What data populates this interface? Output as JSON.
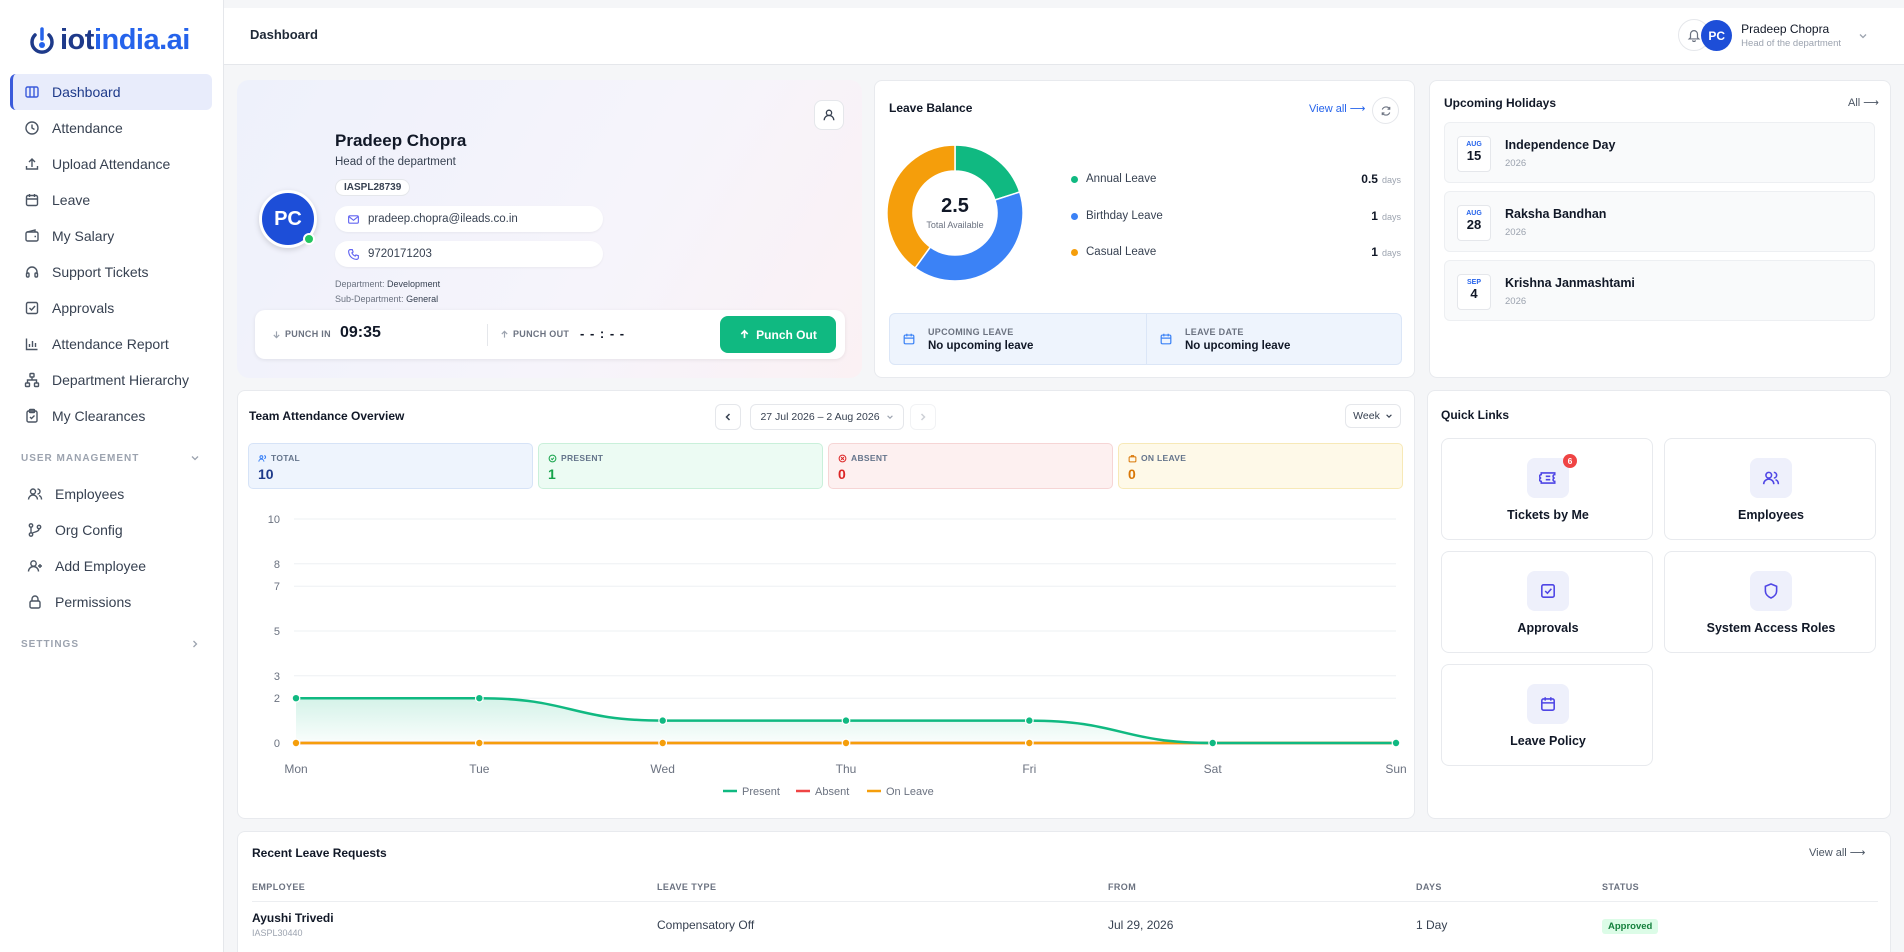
{
  "brand": {
    "name_a": "iot",
    "name_b": "india.ai"
  },
  "sidebar": {
    "items": [
      {
        "label": "Dashboard",
        "icon": "dashboard-icon",
        "active": true
      },
      {
        "label": "Attendance",
        "icon": "clock-icon"
      },
      {
        "label": "Upload Attendance",
        "icon": "upload-icon"
      },
      {
        "label": "Leave",
        "icon": "calendar-icon"
      },
      {
        "label": "My Salary",
        "icon": "wallet-icon"
      },
      {
        "label": "Support Tickets",
        "icon": "headset-icon"
      },
      {
        "label": "Approvals",
        "icon": "check-square-icon"
      },
      {
        "label": "Attendance Report",
        "icon": "bar-chart-icon"
      },
      {
        "label": "Department Hierarchy",
        "icon": "hierarchy-icon"
      },
      {
        "label": "My Clearances",
        "icon": "clipboard-icon"
      }
    ],
    "user_management": {
      "title": "USER MANAGEMENT",
      "items": [
        {
          "label": "Employees",
          "icon": "users-icon"
        },
        {
          "label": "Org Config",
          "icon": "git-branch-icon"
        },
        {
          "label": "Add Employee",
          "icon": "user-plus-icon"
        },
        {
          "label": "Permissions",
          "icon": "lock-icon"
        }
      ]
    },
    "settings": {
      "title": "SETTINGS"
    }
  },
  "header": {
    "title": "Dashboard",
    "user": {
      "initials": "PC",
      "name": "Pradeep Chopra",
      "role": "Head of the department"
    }
  },
  "profile": {
    "initials": "PC",
    "name": "Pradeep Chopra",
    "role": "Head of the department",
    "emp_id": "IASPL28739",
    "email": "pradeep.chopra@ileads.co.in",
    "phone": "9720171203",
    "department_label": "Department:",
    "department": "Development",
    "sub_department_label": "Sub-Department:",
    "sub_department": "General",
    "punch_in_label": "PUNCH IN",
    "punch_in": "09:35",
    "punch_out_label": "PUNCH OUT",
    "punch_out": "- - : - -",
    "punch_button": "Punch Out"
  },
  "leave_balance": {
    "title": "Leave Balance",
    "view_all": "View all ⟶",
    "total": "2.5",
    "total_label": "Total Available",
    "items": [
      {
        "name": "Annual Leave",
        "amount": "0.5",
        "unit": "days",
        "value": 0.5,
        "color": "#10b981"
      },
      {
        "name": "Birthday Leave",
        "amount": "1",
        "unit": "days",
        "value": 1,
        "color": "#3b82f6"
      },
      {
        "name": "Casual Leave",
        "amount": "1",
        "unit": "days",
        "value": 1,
        "color": "#f59e0b"
      }
    ],
    "upcoming_label": "UPCOMING LEAVE",
    "upcoming_value": "No upcoming leave",
    "date_label": "LEAVE DATE",
    "date_value": "No upcoming leave"
  },
  "holidays": {
    "title": "Upcoming Holidays",
    "all_link": "All ⟶",
    "items": [
      {
        "mon": "AUG",
        "day": "15",
        "name": "Independence Day",
        "year": "2026"
      },
      {
        "mon": "AUG",
        "day": "28",
        "name": "Raksha Bandhan",
        "year": "2026"
      },
      {
        "mon": "SEP",
        "day": "4",
        "name": "Krishna Janmashtami",
        "year": "2026"
      }
    ]
  },
  "team": {
    "title": "Team Attendance Overview",
    "range": "27 Jul 2026 – 2 Aug 2026",
    "period": "Week",
    "stats": [
      {
        "label": "TOTAL",
        "value": "10",
        "bg": "#eef4fd",
        "border": "#d6e3f7",
        "color": "#1e3a8a",
        "labelColor": "#64748b"
      },
      {
        "label": "PRESENT",
        "value": "1",
        "bg": "#ecfbf3",
        "border": "#c9f0da",
        "color": "#16a34a",
        "labelColor": "#64748b"
      },
      {
        "label": "ABSENT",
        "value": "0",
        "bg": "#fdf0f0",
        "border": "#f6d5d5",
        "color": "#dc2626",
        "labelColor": "#64748b"
      },
      {
        "label": "ON LEAVE",
        "value": "0",
        "bg": "#fef9e8",
        "border": "#f7e9b7",
        "color": "#d97706",
        "labelColor": "#64748b"
      }
    ]
  },
  "chart_data": {
    "type": "line",
    "categories": [
      "Mon",
      "Tue",
      "Wed",
      "Thu",
      "Fri",
      "Sat",
      "Sun"
    ],
    "y_ticks": [
      0,
      2,
      3,
      5,
      7,
      8,
      10
    ],
    "ylim": [
      0,
      10
    ],
    "legend_position": "bottom",
    "series": [
      {
        "name": "Present",
        "values": [
          2,
          2,
          1,
          1,
          1,
          0,
          0
        ],
        "color": "#10b981"
      },
      {
        "name": "Absent",
        "values": [
          0,
          0,
          0,
          0,
          0,
          0,
          0
        ],
        "color": "#ef4444"
      },
      {
        "name": "On Leave",
        "values": [
          0,
          0,
          0,
          0,
          0,
          0,
          0
        ],
        "color": "#f59e0b"
      }
    ]
  },
  "quick_links": {
    "title": "Quick Links",
    "items": [
      {
        "label": "Tickets by Me",
        "icon": "ticket-icon",
        "badge": "6"
      },
      {
        "label": "Employees",
        "icon": "users-icon"
      },
      {
        "label": "Approvals",
        "icon": "check-square-icon"
      },
      {
        "label": "System Access Roles",
        "icon": "shield-icon"
      },
      {
        "label": "Leave Policy",
        "icon": "calendar-icon"
      }
    ]
  },
  "recent_leave": {
    "title": "Recent Leave Requests",
    "view_all": "View all ⟶",
    "columns": [
      "EMPLOYEE",
      "LEAVE TYPE",
      "FROM",
      "DAYS",
      "STATUS"
    ],
    "rows": [
      {
        "employee": "Ayushi Trivedi",
        "emp_id": "IASPL30440",
        "type": "Compensatory Off",
        "from": "Jul 29, 2026",
        "days": "1 Day",
        "status": "Approved"
      }
    ]
  }
}
